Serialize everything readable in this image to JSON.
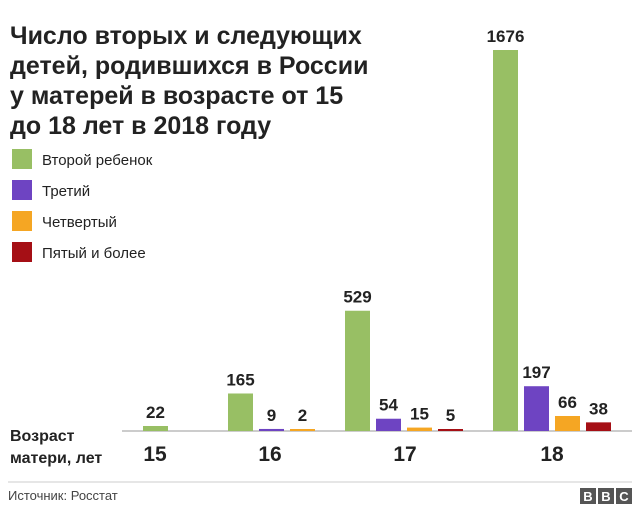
{
  "chart_data": {
    "type": "bar",
    "title_lines": [
      "Число вторых и следующих",
      "детей, родившихся в России",
      "у матерей в возрасте от 15",
      "до 18 лет в 2018 году"
    ],
    "categories": [
      "15",
      "16",
      "17",
      "18"
    ],
    "x_label_lines": [
      "Возраст",
      "матери, лет"
    ],
    "series": [
      {
        "name": "Второй ребенок",
        "color": "#98bf64",
        "values": [
          22,
          165,
          529,
          1676
        ]
      },
      {
        "name": "Третий",
        "color": "#6e44c2",
        "values": [
          null,
          9,
          54,
          197
        ]
      },
      {
        "name": "Четвертый",
        "color": "#f5a623",
        "values": [
          null,
          2,
          15,
          66
        ]
      },
      {
        "name": "Пятый и более",
        "color": "#a50f15",
        "values": [
          null,
          null,
          5,
          38
        ]
      }
    ],
    "source": "Источник: Росстат",
    "logo": "BBC"
  }
}
